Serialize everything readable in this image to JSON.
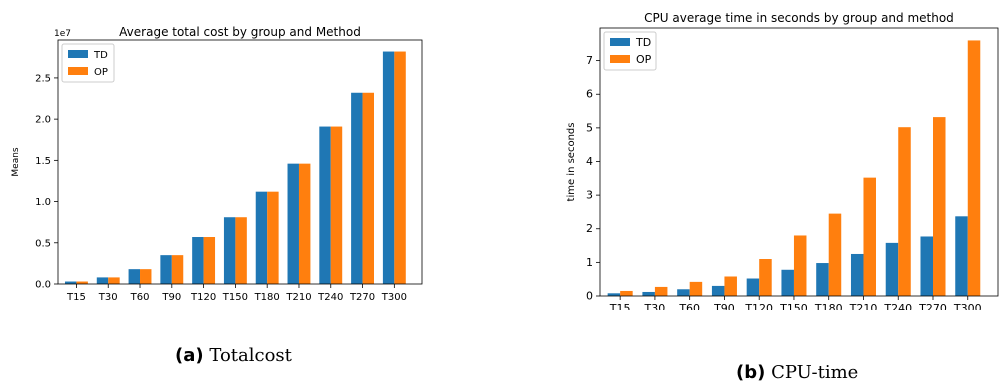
{
  "chart_data": [
    {
      "type": "bar",
      "title": "Average total cost by group and Method",
      "xlabel": "",
      "ylabel": "Means",
      "y_offset_label": "1e7",
      "categories": [
        "T15",
        "T30",
        "T60",
        "T90",
        "T120",
        "T150",
        "T180",
        "T210",
        "T240",
        "T270",
        "T300"
      ],
      "series": [
        {
          "name": "TD",
          "color": "#1f77b4",
          "values": [
            0.03,
            0.08,
            0.18,
            0.35,
            0.57,
            0.81,
            1.12,
            1.46,
            1.91,
            2.32,
            2.82
          ]
        },
        {
          "name": "OP",
          "color": "#ff7f0e",
          "values": [
            0.03,
            0.08,
            0.18,
            0.35,
            0.57,
            0.81,
            1.12,
            1.46,
            1.91,
            2.32,
            2.82
          ]
        }
      ],
      "ylim": [
        0,
        2.96
      ],
      "yticks": [
        "0.0",
        "0.5",
        "1.0",
        "1.5",
        "2.0",
        "2.5"
      ],
      "legend": "upper-left",
      "grid": false
    },
    {
      "type": "bar",
      "title": "CPU average time in seconds by group and method",
      "xlabel": "",
      "ylabel": "time in seconds",
      "categories": [
        "T15",
        "T30",
        "T60",
        "T90",
        "T120",
        "T150",
        "T180",
        "T210",
        "T240",
        "T270",
        "T300"
      ],
      "series": [
        {
          "name": "TD",
          "color": "#1f77b4",
          "values": [
            0.08,
            0.12,
            0.2,
            0.3,
            0.52,
            0.78,
            0.98,
            1.25,
            1.58,
            1.77,
            2.37
          ]
        },
        {
          "name": "OP",
          "color": "#ff7f0e",
          "values": [
            0.15,
            0.27,
            0.42,
            0.58,
            1.1,
            1.8,
            2.45,
            3.52,
            5.02,
            5.32,
            7.6
          ]
        }
      ],
      "ylim": [
        0,
        7.97
      ],
      "yticks": [
        "0",
        "1",
        "2",
        "3",
        "4",
        "5",
        "6",
        "7"
      ],
      "legend": "upper-left",
      "grid": false
    }
  ],
  "captions": [
    {
      "tag": "(a)",
      "text": "Totalcost"
    },
    {
      "tag": "(b)",
      "text": "CPU-time"
    }
  ]
}
